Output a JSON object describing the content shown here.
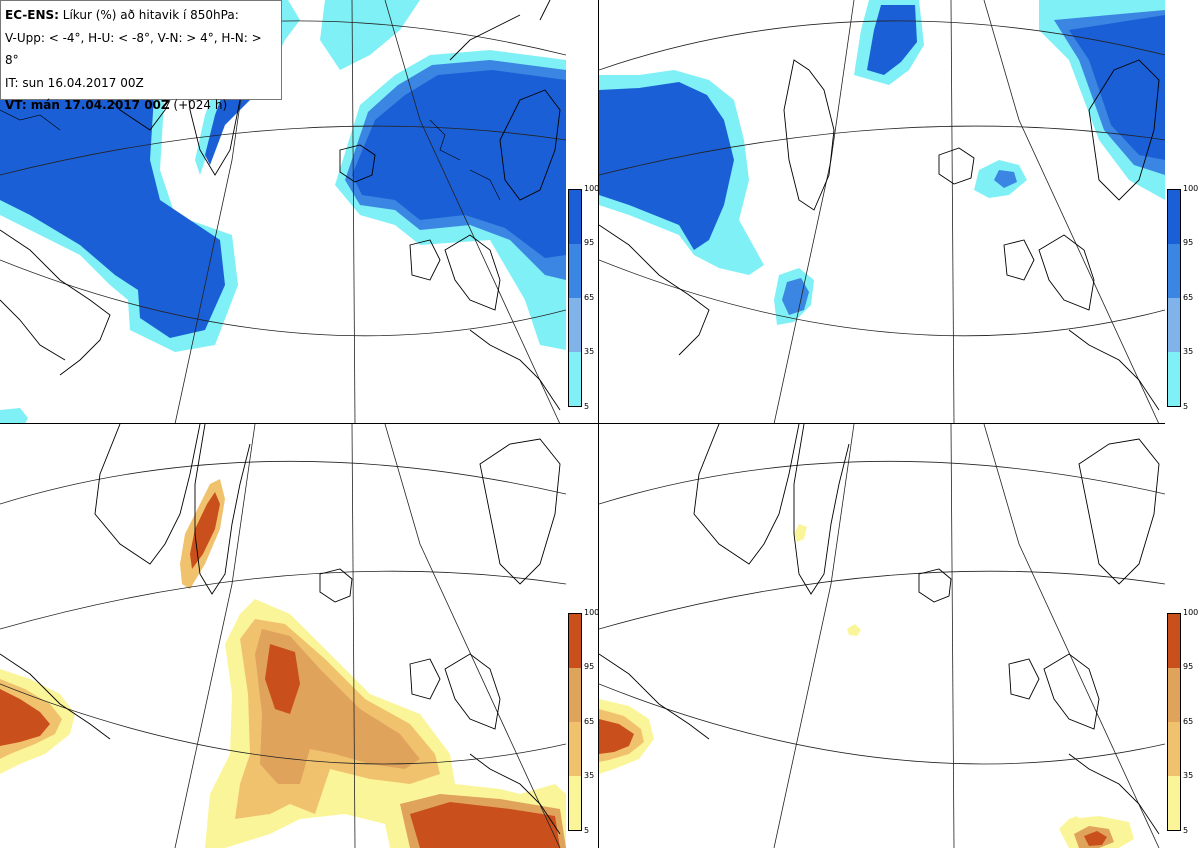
{
  "info": {
    "line1_bold": "EC-ENS:",
    "line1_rest": " Líkur (%) að hitavik í 850hPa:",
    "line2": "V-Upp: < -4°, H-U: < -8°, V-N: > 4°, H-N: > 8°",
    "line3": "IT: sun 16.04.2017 00Z",
    "line4_bold": "VT: mán 17.04.2017 00Z",
    "line4_rest": " (+024 h)"
  },
  "colorbar_cold": {
    "ticks": [
      "100",
      "95",
      "65",
      "35",
      "5"
    ],
    "colors": [
      "#1b5fd6",
      "#3a86e2",
      "#7fb3ea",
      "#7ff0f5"
    ]
  },
  "colorbar_warm": {
    "ticks": [
      "100",
      "95",
      "65",
      "35",
      "5"
    ],
    "colors": [
      "#c9501c",
      "#e0a35c",
      "#f1c26e",
      "#fbf59a"
    ]
  },
  "panels": [
    {
      "id": "V-Upp",
      "scheme": "cold"
    },
    {
      "id": "H-U",
      "scheme": "cold"
    },
    {
      "id": "V-N",
      "scheme": "warm"
    },
    {
      "id": "H-N",
      "scheme": "warm"
    }
  ]
}
